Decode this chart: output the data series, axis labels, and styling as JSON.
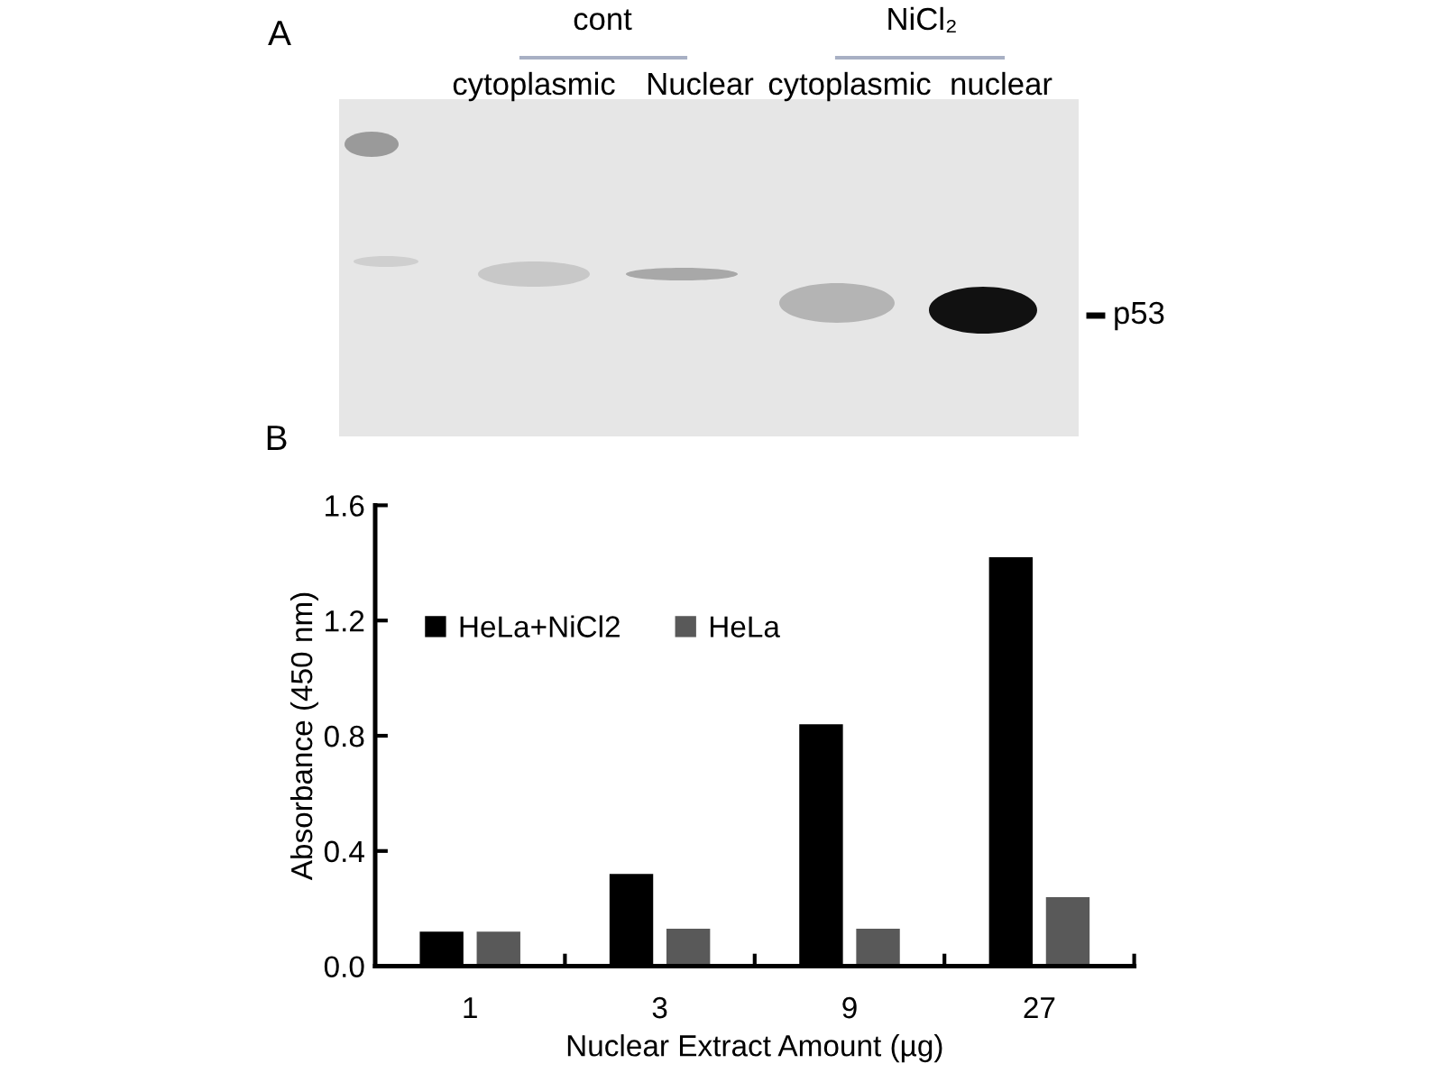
{
  "chart_data": [
    {
      "type": "other",
      "title": "A",
      "annotations": [
        "cont",
        "NiCl₂",
        "cytoplasmic",
        "Nuclear",
        "cytoplasmic",
        "nuclear",
        "p53"
      ]
    },
    {
      "type": "bar",
      "title": "B",
      "categories": [
        "1",
        "3",
        "9",
        "27"
      ],
      "series": [
        {
          "name": "HeLa+NiCl2",
          "color": "#000000",
          "values": [
            0.12,
            0.32,
            0.84,
            1.42
          ]
        },
        {
          "name": "HeLa",
          "color": "#595959",
          "values": [
            0.12,
            0.13,
            0.13,
            0.24
          ]
        }
      ],
      "xlabel": "Nuclear Extract Amount (µg)",
      "ylabel": "Absorbance (450 nm)",
      "ylim": [
        0,
        1.6
      ],
      "yticks": [
        {
          "value": 0,
          "label": "0.0"
        },
        0.4,
        0.8,
        1.2,
        1.6
      ],
      "legend": "top left"
    }
  ]
}
